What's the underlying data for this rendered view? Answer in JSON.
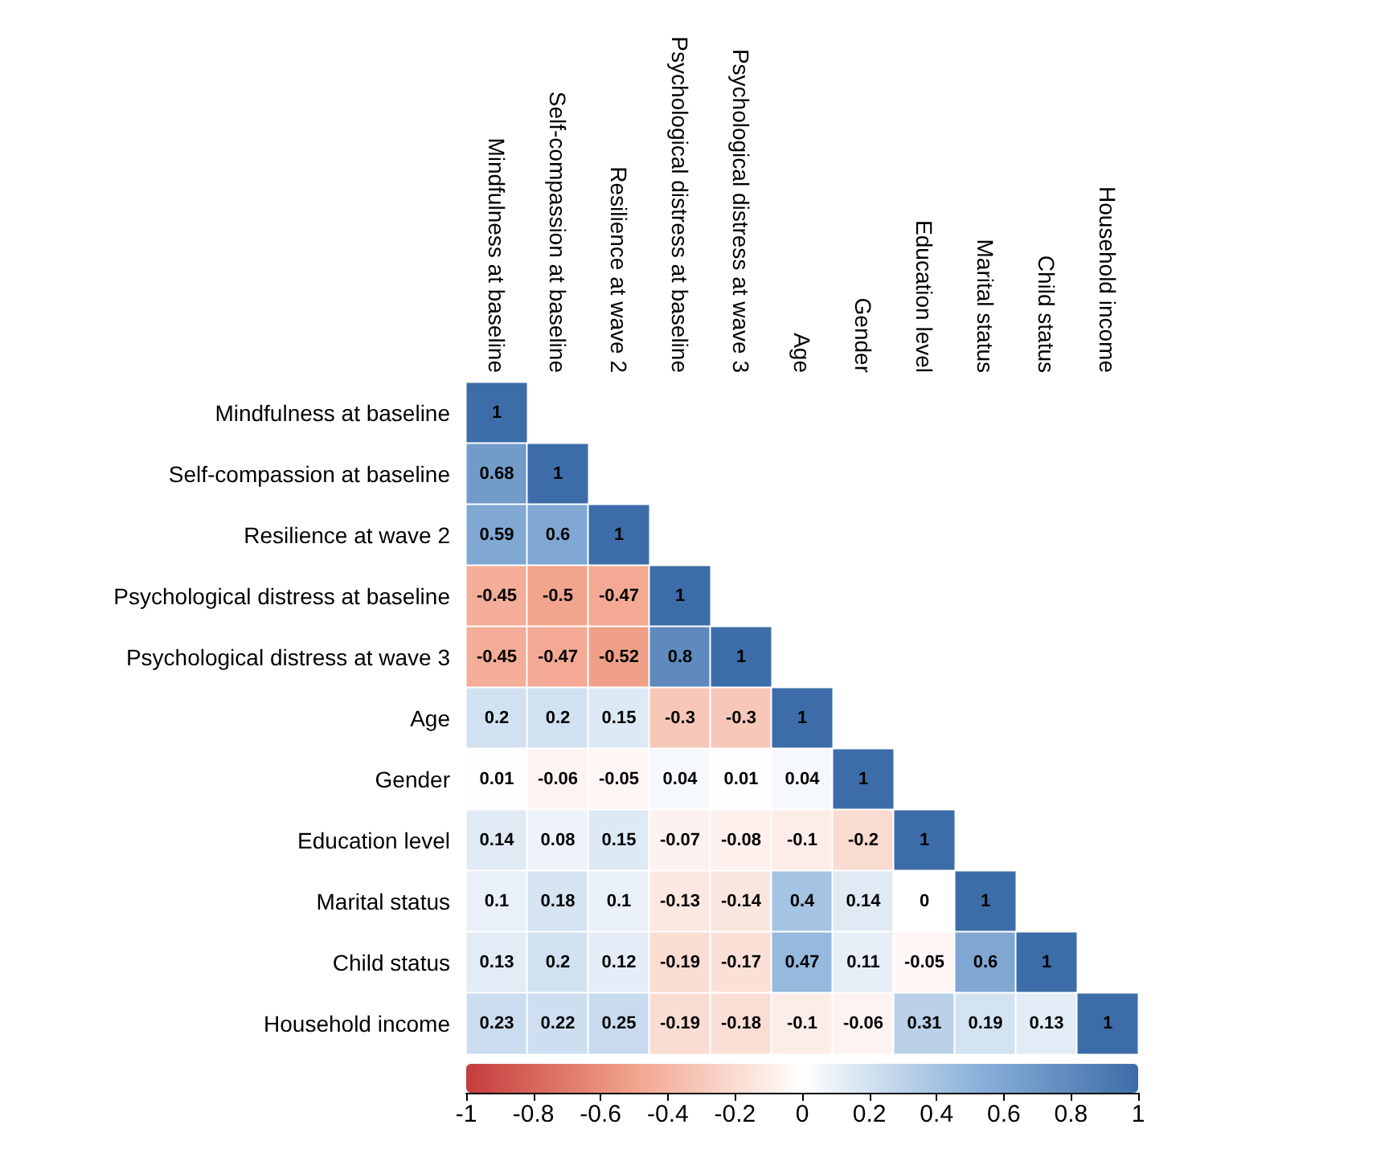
{
  "chart_data": {
    "type": "heatmap",
    "categories": [
      "Mindfulness at baseline",
      "Self-compassion at baseline",
      "Resilience at wave 2",
      "Psychological distress at baseline",
      "Psychological distress at wave 3",
      "Age",
      "Gender",
      "Education level",
      "Marital status",
      "Child status",
      "Household income"
    ],
    "y_categories": [
      "Mindfulness at baseline",
      "Self-compassion at baseline",
      "Resilience at wave 2",
      "Psychological distress at baseline",
      "Psychological distress at wave 3",
      "Age",
      "Gender",
      "Education level",
      "Marital status",
      "Child status",
      "Household income"
    ],
    "cells": [
      [
        1,
        null,
        null,
        null,
        null,
        null,
        null,
        null,
        null,
        null,
        null
      ],
      [
        0.68,
        1,
        null,
        null,
        null,
        null,
        null,
        null,
        null,
        null,
        null
      ],
      [
        0.59,
        0.6,
        1,
        null,
        null,
        null,
        null,
        null,
        null,
        null,
        null
      ],
      [
        -0.45,
        -0.5,
        -0.47,
        1,
        null,
        null,
        null,
        null,
        null,
        null,
        null
      ],
      [
        -0.45,
        -0.47,
        -0.52,
        0.8,
        1,
        null,
        null,
        null,
        null,
        null,
        null
      ],
      [
        0.2,
        0.2,
        0.15,
        -0.3,
        -0.3,
        1,
        null,
        null,
        null,
        null,
        null
      ],
      [
        0.01,
        -0.06,
        -0.05,
        0.04,
        0.01,
        0.04,
        1,
        null,
        null,
        null,
        null
      ],
      [
        0.14,
        0.08,
        0.15,
        -0.07,
        -0.08,
        -0.1,
        -0.2,
        1,
        null,
        null,
        null
      ],
      [
        0.1,
        0.18,
        0.1,
        -0.13,
        -0.14,
        0.4,
        0.14,
        0,
        1,
        null,
        null
      ],
      [
        0.13,
        0.2,
        0.12,
        -0.19,
        -0.17,
        0.47,
        0.11,
        -0.05,
        0.6,
        1,
        null
      ],
      [
        0.23,
        0.22,
        0.25,
        -0.19,
        -0.18,
        -0.1,
        -0.06,
        0.31,
        0.19,
        0.13,
        1
      ]
    ],
    "clim": [
      -1,
      1
    ],
    "cticks": [
      -1,
      -0.8,
      -0.6,
      -0.4,
      -0.2,
      0,
      0.2,
      0.4,
      0.6,
      0.8,
      1
    ],
    "data_labels": true
  }
}
